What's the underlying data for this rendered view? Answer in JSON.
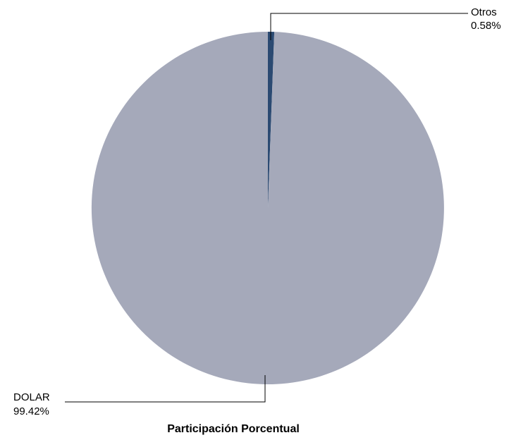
{
  "chart_data": {
    "type": "pie",
    "title": "Participación Porcentual",
    "slices": [
      {
        "label": "Otros",
        "value": 0.58,
        "value_label": "0.58%",
        "color": "#2b4a72"
      },
      {
        "label": "DOLAR",
        "value": 99.42,
        "value_label": "99.42%",
        "color": "#a5a9ba"
      }
    ],
    "start_angle": "12 o'clock",
    "direction": "clockwise",
    "legend": "none"
  }
}
